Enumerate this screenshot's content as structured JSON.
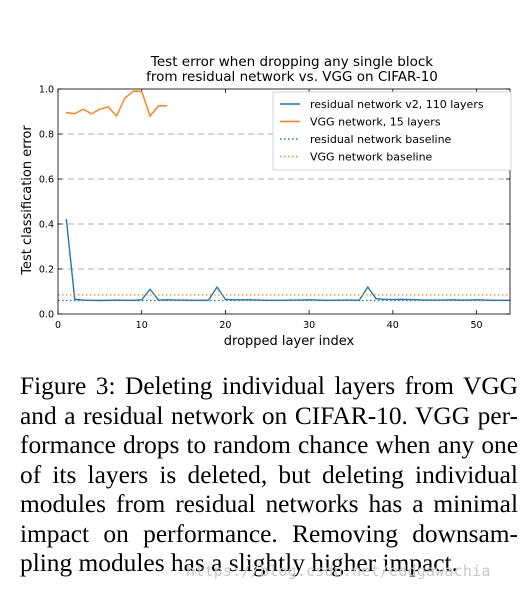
{
  "chart_data": {
    "type": "line",
    "title": "Test error when dropping any single block\nfrom residual network vs. VGG on CIFAR-10",
    "title_lines": [
      "Test error when dropping any single block",
      "from residual network vs. VGG on CIFAR-10"
    ],
    "xlabel": "dropped layer index",
    "ylabel": "Test classification error",
    "xlim": [
      0,
      54
    ],
    "ylim": [
      0,
      1.0
    ],
    "xticks": [
      "0",
      "10",
      "20",
      "30",
      "40",
      "50"
    ],
    "yticks": [
      "0.0",
      "0.2",
      "0.4",
      "0.6",
      "0.8",
      "1.0"
    ],
    "grid": "horizontal dashed",
    "legend_position": "top-right",
    "series": [
      {
        "name": "residual network v2, 110 layers",
        "style": "solid",
        "color": "#1f77b4",
        "x": [
          1,
          2,
          3,
          4,
          5,
          6,
          7,
          8,
          9,
          10,
          11,
          12,
          13,
          14,
          15,
          16,
          17,
          18,
          19,
          20,
          21,
          22,
          23,
          24,
          25,
          26,
          27,
          28,
          29,
          30,
          31,
          32,
          33,
          34,
          35,
          36,
          37,
          38,
          39,
          40,
          41,
          42,
          43,
          44,
          45,
          46,
          47,
          48,
          49,
          50,
          51,
          52,
          53,
          54
        ],
        "values": [
          0.42,
          0.065,
          0.062,
          0.061,
          0.06,
          0.061,
          0.062,
          0.061,
          0.061,
          0.063,
          0.11,
          0.062,
          0.063,
          0.062,
          0.062,
          0.061,
          0.061,
          0.062,
          0.12,
          0.065,
          0.063,
          0.063,
          0.063,
          0.062,
          0.061,
          0.061,
          0.061,
          0.062,
          0.062,
          0.063,
          0.062,
          0.061,
          0.061,
          0.062,
          0.062,
          0.061,
          0.12,
          0.068,
          0.065,
          0.064,
          0.065,
          0.064,
          0.063,
          0.062,
          0.062,
          0.062,
          0.063,
          0.062,
          0.062,
          0.063,
          0.062,
          0.061,
          0.061,
          0.061
        ]
      },
      {
        "name": "VGG network, 15 layers",
        "style": "solid",
        "color": "#ff7f0e",
        "x": [
          1,
          2,
          3,
          4,
          5,
          6,
          7,
          8,
          9,
          10,
          11,
          12,
          13
        ],
        "values": [
          0.895,
          0.89,
          0.91,
          0.89,
          0.91,
          0.92,
          0.88,
          0.96,
          0.99,
          0.99,
          0.88,
          0.925,
          0.925
        ]
      },
      {
        "name": "residual network baseline",
        "style": "dotted",
        "color": "#1f77b4",
        "constant": 0.06
      },
      {
        "name": "VGG network baseline",
        "style": "dotted",
        "color": "#ff7f0e",
        "constant": 0.085
      }
    ]
  },
  "caption": {
    "lines": [
      "Figure 3:  Deleting individual layers from VGG",
      "and a residual network on CIFAR-10. VGG per-",
      "formance drops to random chance when any one",
      "of its layers is deleted, but deleting individual",
      "modules from residual networks has a minimal",
      "impact on performance.  Removing downsam-",
      "pling modules has a slightly higher impact."
    ]
  },
  "watermark": "https://blog.csdn.net/eddgawachia"
}
